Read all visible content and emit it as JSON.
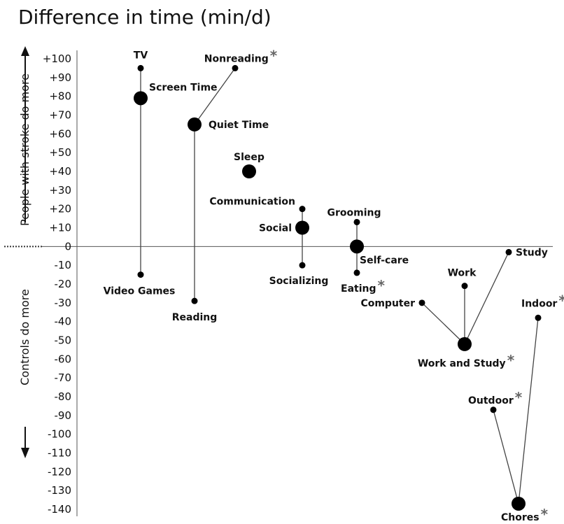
{
  "chart_data": {
    "type": "scatter",
    "title": "Difference in time (min/d)",
    "ylabel_top": "People with stroke do more",
    "ylabel_bottom": "Controls do more",
    "ylim": [
      -140,
      100
    ],
    "yticks": [
      100,
      90,
      80,
      70,
      60,
      50,
      40,
      30,
      20,
      10,
      0,
      -10,
      -20,
      -30,
      -40,
      -50,
      -60,
      -70,
      -80,
      -90,
      -100,
      -110,
      -120,
      -130,
      -140
    ],
    "ytick_labels": [
      "+100",
      "+90",
      "+80",
      "+70",
      "+60",
      "+50",
      "+40",
      "+30",
      "+20",
      "+10",
      "0",
      "-10",
      "-20",
      "-30",
      "-40",
      "-50",
      "-60",
      "-70",
      "-80",
      "-90",
      "-100",
      "-110",
      "-120",
      "-130",
      "-140"
    ],
    "significance_marker": "*",
    "points": [
      {
        "id": "tv",
        "label": "TV",
        "y": 95,
        "size": "small",
        "sig": false
      },
      {
        "id": "screen-time",
        "label": "Screen Time",
        "y": 79,
        "size": "large",
        "sig": false
      },
      {
        "id": "video-games",
        "label": "Video Games",
        "y": -15,
        "size": "small",
        "sig": false
      },
      {
        "id": "nonreading",
        "label": "Nonreading",
        "y": 95,
        "size": "small",
        "sig": true
      },
      {
        "id": "quiet-time",
        "label": "Quiet Time",
        "y": 65,
        "size": "large",
        "sig": false
      },
      {
        "id": "reading",
        "label": "Reading",
        "y": -29,
        "size": "small",
        "sig": false
      },
      {
        "id": "sleep",
        "label": "Sleep",
        "y": 40,
        "size": "large",
        "sig": false
      },
      {
        "id": "communication",
        "label": "Communication",
        "y": 20,
        "size": "small",
        "sig": false
      },
      {
        "id": "social",
        "label": "Social",
        "y": 10,
        "size": "large",
        "sig": false
      },
      {
        "id": "socializing",
        "label": "Socializing",
        "y": -10,
        "size": "small",
        "sig": false
      },
      {
        "id": "grooming",
        "label": "Grooming",
        "y": 13,
        "size": "small",
        "sig": false
      },
      {
        "id": "self-care",
        "label": "Self-care",
        "y": 0,
        "size": "large",
        "sig": false
      },
      {
        "id": "eating",
        "label": "Eating",
        "y": -14,
        "size": "small",
        "sig": true
      },
      {
        "id": "study",
        "label": "Study",
        "y": -3,
        "size": "small",
        "sig": false
      },
      {
        "id": "work",
        "label": "Work",
        "y": -21,
        "size": "small",
        "sig": false
      },
      {
        "id": "computer",
        "label": "Computer",
        "y": -30,
        "size": "small",
        "sig": false
      },
      {
        "id": "work-and-study",
        "label": "Work and Study",
        "y": -52,
        "size": "large",
        "sig": true
      },
      {
        "id": "indoor",
        "label": "Indoor",
        "y": -38,
        "size": "small",
        "sig": true
      },
      {
        "id": "outdoor",
        "label": "Outdoor",
        "y": -87,
        "size": "small",
        "sig": true
      },
      {
        "id": "chores",
        "label": "Chores",
        "y": -137,
        "size": "large",
        "sig": true
      }
    ],
    "links": [
      [
        "tv",
        "screen-time"
      ],
      [
        "screen-time",
        "video-games"
      ],
      [
        "nonreading",
        "quiet-time"
      ],
      [
        "quiet-time",
        "reading"
      ],
      [
        "communication",
        "social"
      ],
      [
        "social",
        "socializing"
      ],
      [
        "grooming",
        "self-care"
      ],
      [
        "self-care",
        "eating"
      ],
      [
        "study",
        "work-and-study"
      ],
      [
        "work",
        "work-and-study"
      ],
      [
        "computer",
        "work-and-study"
      ],
      [
        "indoor",
        "chores"
      ],
      [
        "outdoor",
        "chores"
      ]
    ]
  }
}
